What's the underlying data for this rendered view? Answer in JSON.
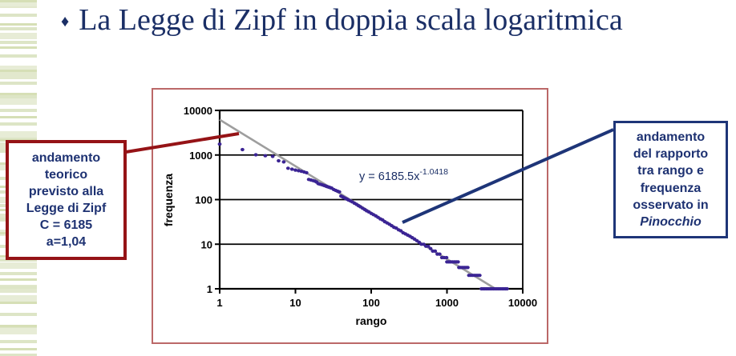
{
  "slide": {
    "bullet": "♦",
    "title": "La Legge di Zipf in doppia scala logaritmica"
  },
  "left_callout": {
    "text": "andamento\nteorico\nprevisto alla\nLegge di Zipf\nC = 6185\na=1,04"
  },
  "right_callout": {
    "text": "andamento\ndel rapporto\ntra rango e\nfrequenza\nosservato in",
    "emphasis": "Pinocchio"
  },
  "chart_data": {
    "type": "scatter",
    "xlabel": "rango",
    "ylabel": "frequenza",
    "x_scale": "log",
    "y_scale": "log",
    "xlim": [
      1,
      10000
    ],
    "ylim": [
      1,
      10000
    ],
    "x_ticks": [
      1,
      10,
      100,
      1000,
      10000
    ],
    "y_ticks": [
      1,
      10,
      100,
      1000,
      10000
    ],
    "grid": "horizontal",
    "legend": "none",
    "equation_base": "y = 6185.5x",
    "equation_exponent": "-1.0418",
    "trendline": {
      "coefficient": 6185.5,
      "exponent": -1.0418
    },
    "points": [
      [
        1,
        1760
      ],
      [
        2,
        1320
      ],
      [
        3,
        1010
      ],
      [
        4,
        960
      ],
      [
        5,
        930
      ],
      [
        6,
        740
      ],
      [
        7,
        700
      ],
      [
        8,
        505
      ],
      [
        9,
        480
      ],
      [
        10,
        460
      ],
      [
        11,
        445
      ],
      [
        12,
        430
      ],
      [
        13,
        415
      ],
      [
        14,
        400
      ],
      [
        15,
        283
      ],
      [
        16,
        275
      ],
      [
        17,
        267
      ],
      [
        18,
        260
      ],
      [
        19,
        248
      ],
      [
        20,
        228
      ],
      [
        21,
        222
      ],
      [
        22,
        217
      ],
      [
        23,
        212
      ],
      [
        24,
        207
      ],
      [
        25,
        202
      ],
      [
        26,
        197
      ],
      [
        27,
        193
      ],
      [
        28,
        189
      ],
      [
        29,
        185
      ],
      [
        30,
        181
      ],
      [
        32,
        168
      ],
      [
        34,
        161
      ],
      [
        36,
        154
      ],
      [
        38,
        149
      ],
      [
        40,
        120
      ],
      [
        42,
        115
      ],
      [
        44,
        110
      ],
      [
        46,
        106
      ],
      [
        48,
        102
      ],
      [
        50,
        98
      ],
      [
        53,
        94
      ],
      [
        56,
        89
      ],
      [
        60,
        83
      ],
      [
        64,
        78
      ],
      [
        68,
        73
      ],
      [
        72,
        69
      ],
      [
        77,
        64
      ],
      [
        82,
        60
      ],
      [
        87,
        56
      ],
      [
        93,
        53
      ],
      [
        100,
        49
      ],
      [
        107,
        46
      ],
      [
        115,
        43
      ],
      [
        123,
        40
      ],
      [
        132,
        37
      ],
      [
        141,
        35
      ],
      [
        151,
        32
      ],
      [
        162,
        30
      ],
      [
        174,
        28
      ],
      [
        186,
        26
      ],
      [
        200,
        24
      ],
      [
        214,
        23
      ],
      [
        230,
        21
      ],
      [
        246,
        20
      ],
      [
        264,
        18
      ],
      [
        283,
        17
      ],
      [
        303,
        16
      ],
      [
        325,
        15
      ],
      [
        348,
        14
      ],
      [
        373,
        13
      ],
      [
        400,
        12
      ],
      [
        429,
        11
      ],
      [
        460,
        10
      ],
      [
        493,
        10
      ],
      [
        528,
        9
      ],
      [
        566,
        9
      ],
      [
        607,
        8
      ],
      [
        650,
        7
      ],
      [
        697,
        7
      ],
      [
        747,
        6
      ],
      [
        800,
        6
      ],
      [
        858,
        5
      ],
      [
        919,
        5
      ],
      [
        985,
        5
      ],
      [
        1000,
        4
      ],
      [
        1060,
        4
      ],
      [
        1120,
        4
      ],
      [
        1190,
        4
      ],
      [
        1260,
        4
      ],
      [
        1330,
        4
      ],
      [
        1400,
        4
      ],
      [
        1440,
        3
      ],
      [
        1520,
        3
      ],
      [
        1600,
        3
      ],
      [
        1690,
        3
      ],
      [
        1780,
        3
      ],
      [
        1880,
        3
      ],
      [
        1950,
        2
      ],
      [
        2060,
        2
      ],
      [
        2180,
        2
      ],
      [
        2300,
        2
      ],
      [
        2430,
        2
      ],
      [
        2560,
        2
      ],
      [
        2700,
        2
      ],
      [
        2850,
        1
      ],
      [
        3000,
        1
      ],
      [
        3160,
        1
      ],
      [
        3330,
        1
      ],
      [
        3510,
        1
      ],
      [
        3700,
        1
      ],
      [
        3900,
        1
      ],
      [
        4110,
        1
      ],
      [
        4330,
        1
      ],
      [
        4560,
        1
      ],
      [
        4800,
        1
      ],
      [
        5060,
        1
      ],
      [
        5330,
        1
      ],
      [
        5610,
        1
      ],
      [
        5910,
        1
      ],
      [
        6200,
        1
      ]
    ]
  },
  "colors": {
    "title_text": "#1b2f66",
    "callout_text": "#1e3272",
    "left_callout_border": "#951316",
    "right_callout_border": "#1e3578",
    "red_connector": "#951316",
    "blue_connector": "#1e3578",
    "chart_border": "#bb6868",
    "scatter_point": "#3b2494",
    "trendline": "#9e9e9e",
    "gridline": "#000000",
    "stripe_green": "#dde5c6"
  }
}
